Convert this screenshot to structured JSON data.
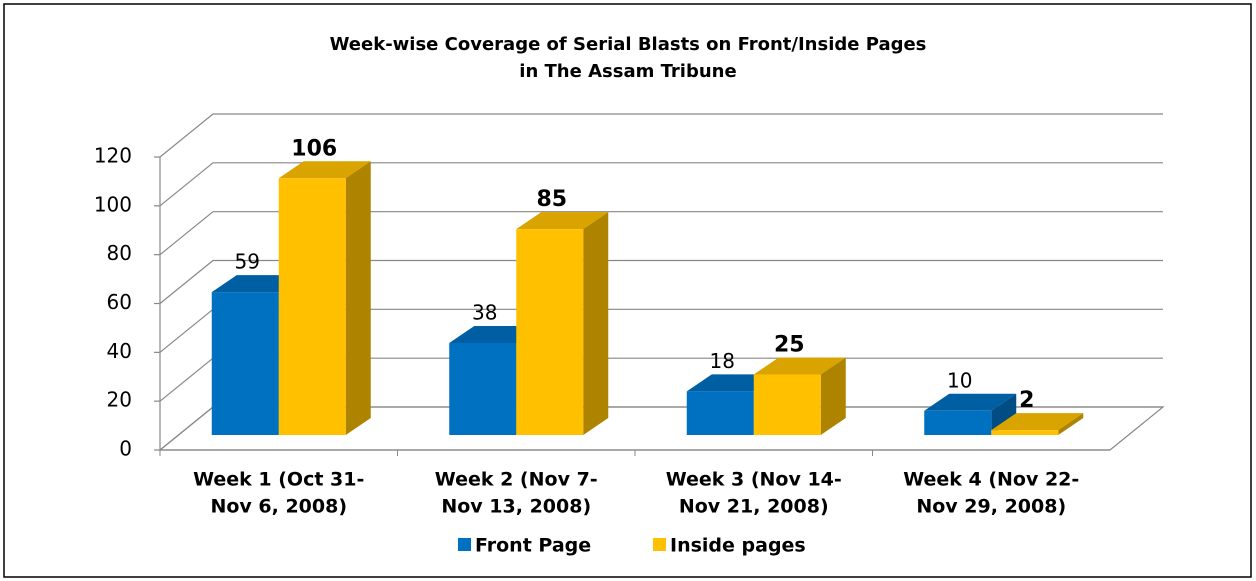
{
  "chart_data": {
    "type": "bar3d",
    "title": [
      "Week-wise Coverage of Serial Blasts on Front/Inside Pages",
      "in The Assam Tribune"
    ],
    "categories": [
      [
        "Week 1 (Oct 31-",
        "Nov 6, 2008)"
      ],
      [
        "Week 2 (Nov 7-",
        "Nov 13, 2008)"
      ],
      [
        "Week 3 (Nov 14-",
        "Nov 21, 2008)"
      ],
      [
        "Week 4 (Nov 22-",
        "Nov 29, 2008)"
      ]
    ],
    "series": [
      {
        "name": "Front Page",
        "color": "#0070c0",
        "values": [
          59,
          38,
          18,
          10
        ]
      },
      {
        "name": "Inside pages",
        "color": "#ffc000",
        "values": [
          106,
          85,
          25,
          2
        ]
      }
    ],
    "ylim": [
      0,
      120
    ],
    "yticks": [
      0,
      20,
      40,
      60,
      80,
      100,
      120
    ],
    "grid": true,
    "legend": "bottom"
  }
}
